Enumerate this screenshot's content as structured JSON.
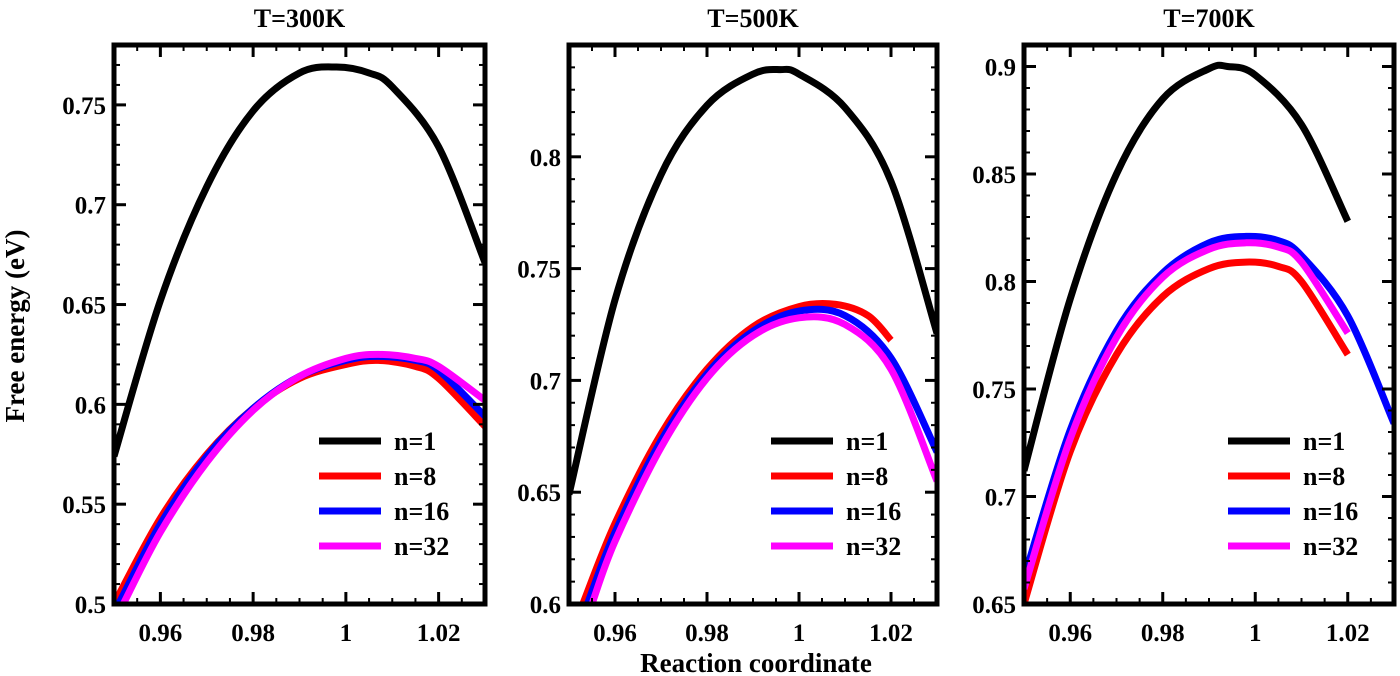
{
  "figure": {
    "xlabel": "Reaction coordinate",
    "ylabel": "Free energy (eV)"
  },
  "legend": {
    "placement": "bottom-right",
    "entries": [
      {
        "name": "n=1",
        "color": "#000000"
      },
      {
        "name": "n=8",
        "color": "#ff0000"
      },
      {
        "name": "n=16",
        "color": "#0000ff"
      },
      {
        "name": "n=32",
        "color": "#ff00ff"
      }
    ]
  },
  "chart_data": [
    {
      "type": "line",
      "title": "T=300K",
      "xlim": [
        0.95,
        1.03
      ],
      "ylim": [
        0.5,
        0.78
      ],
      "xticks": [
        0.96,
        0.98,
        1,
        1.02
      ],
      "xtick_labels": [
        "0.96",
        "0.98",
        "1",
        "1.02"
      ],
      "yticks": [
        0.5,
        0.55,
        0.6,
        0.65,
        0.7,
        0.75
      ],
      "ytick_labels": [
        "0.5",
        "0.55",
        "0.6",
        "0.65",
        "0.7",
        "0.75"
      ],
      "series": [
        {
          "name": "n=1",
          "color": "#000000",
          "x": [
            0.95,
            0.96,
            0.97,
            0.98,
            0.99,
            0.998,
            1.005,
            1.01,
            1.02,
            1.03
          ],
          "y": [
            0.574,
            0.652,
            0.709,
            0.747,
            0.766,
            0.769,
            0.766,
            0.759,
            0.729,
            0.671
          ]
        },
        {
          "name": "n=8",
          "color": "#ff0000",
          "x": [
            0.95,
            0.96,
            0.97,
            0.98,
            0.99,
            1.0,
            1.007,
            1.015,
            1.02,
            1.03
          ],
          "y": [
            0.5,
            0.543,
            0.575,
            0.598,
            0.613,
            0.62,
            0.622,
            0.619,
            0.613,
            0.589
          ]
        },
        {
          "name": "n=16",
          "color": "#0000ff",
          "x": [
            0.951,
            0.96,
            0.97,
            0.98,
            0.99,
            1.0,
            1.007,
            1.015,
            1.02,
            1.03
          ],
          "y": [
            0.5,
            0.54,
            0.574,
            0.598,
            0.614,
            0.622,
            0.624,
            0.622,
            0.617,
            0.594
          ]
        },
        {
          "name": "n=32",
          "color": "#ff00ff",
          "x": [
            0.952,
            0.96,
            0.97,
            0.98,
            0.99,
            1.0,
            1.007,
            1.015,
            1.02,
            1.03
          ],
          "y": [
            0.5,
            0.536,
            0.571,
            0.597,
            0.614,
            0.623,
            0.625,
            0.623,
            0.619,
            0.602
          ]
        }
      ]
    },
    {
      "type": "line",
      "title": "T=500K",
      "xlim": [
        0.95,
        1.03
      ],
      "ylim": [
        0.6,
        0.85
      ],
      "xticks": [
        0.96,
        0.98,
        1,
        1.02
      ],
      "xtick_labels": [
        "0.96",
        "0.98",
        "1",
        "1.02"
      ],
      "yticks": [
        0.6,
        0.65,
        0.7,
        0.75,
        0.8
      ],
      "ytick_labels": [
        "0.6",
        "0.65",
        "0.7",
        "0.75",
        "0.8"
      ],
      "series": [
        {
          "name": "n=1",
          "color": "#000000",
          "x": [
            0.95,
            0.96,
            0.97,
            0.98,
            0.99,
            0.996,
            1.0,
            1.01,
            1.02,
            1.03
          ],
          "y": [
            0.649,
            0.736,
            0.792,
            0.823,
            0.837,
            0.839,
            0.837,
            0.822,
            0.789,
            0.721
          ]
        },
        {
          "name": "n=8",
          "color": "#ff0000",
          "x": [
            0.953,
            0.96,
            0.97,
            0.98,
            0.99,
            1.0,
            1.008,
            1.015,
            1.02
          ],
          "y": [
            0.6,
            0.636,
            0.676,
            0.705,
            0.724,
            0.733,
            0.734,
            0.729,
            0.718
          ]
        },
        {
          "name": "n=16",
          "color": "#0000ff",
          "x": [
            0.954,
            0.96,
            0.97,
            0.98,
            0.99,
            1.0,
            1.01,
            1.02,
            1.03
          ],
          "y": [
            0.6,
            0.632,
            0.673,
            0.703,
            0.722,
            0.731,
            0.729,
            0.71,
            0.668
          ]
        },
        {
          "name": "n=32",
          "color": "#ff00ff",
          "x": [
            0.955,
            0.96,
            0.97,
            0.98,
            0.99,
            1.0,
            1.01,
            1.02,
            1.03
          ],
          "y": [
            0.6,
            0.628,
            0.67,
            0.701,
            0.72,
            0.728,
            0.725,
            0.705,
            0.655
          ]
        }
      ]
    },
    {
      "type": "line",
      "title": "T=700K",
      "xlim": [
        0.95,
        1.03
      ],
      "ylim": [
        0.65,
        0.91
      ],
      "xticks": [
        0.96,
        0.98,
        1,
        1.02
      ],
      "xtick_labels": [
        "0.96",
        "0.98",
        "1",
        "1.02"
      ],
      "yticks": [
        0.65,
        0.7,
        0.75,
        0.8,
        0.85,
        0.9
      ],
      "ytick_labels": [
        "0.65",
        "0.7",
        "0.75",
        "0.8",
        "0.85",
        "0.9"
      ],
      "series": [
        {
          "name": "n=1",
          "color": "#000000",
          "x": [
            0.95,
            0.96,
            0.97,
            0.98,
            0.99,
            0.994,
            1.0,
            1.01,
            1.02
          ],
          "y": [
            0.712,
            0.792,
            0.85,
            0.885,
            0.899,
            0.9,
            0.896,
            0.873,
            0.828
          ]
        },
        {
          "name": "n=8",
          "color": "#ff0000",
          "x": [
            0.95,
            0.96,
            0.97,
            0.98,
            0.99,
            0.998,
            1.005,
            1.01,
            1.02
          ],
          "y": [
            0.65,
            0.721,
            0.766,
            0.793,
            0.806,
            0.809,
            0.807,
            0.8,
            0.766
          ]
        },
        {
          "name": "n=16",
          "color": "#0000ff",
          "x": [
            0.95,
            0.96,
            0.97,
            0.98,
            0.99,
            0.998,
            1.005,
            1.01,
            1.02,
            1.03
          ],
          "y": [
            0.662,
            0.731,
            0.777,
            0.804,
            0.818,
            0.821,
            0.819,
            0.812,
            0.784,
            0.734
          ]
        },
        {
          "name": "n=32",
          "color": "#ff00ff",
          "x": [
            0.95,
            0.96,
            0.97,
            0.98,
            0.99,
            0.998,
            1.005,
            1.01,
            1.02
          ],
          "y": [
            0.657,
            0.727,
            0.774,
            0.802,
            0.815,
            0.818,
            0.816,
            0.809,
            0.776
          ]
        }
      ]
    }
  ]
}
